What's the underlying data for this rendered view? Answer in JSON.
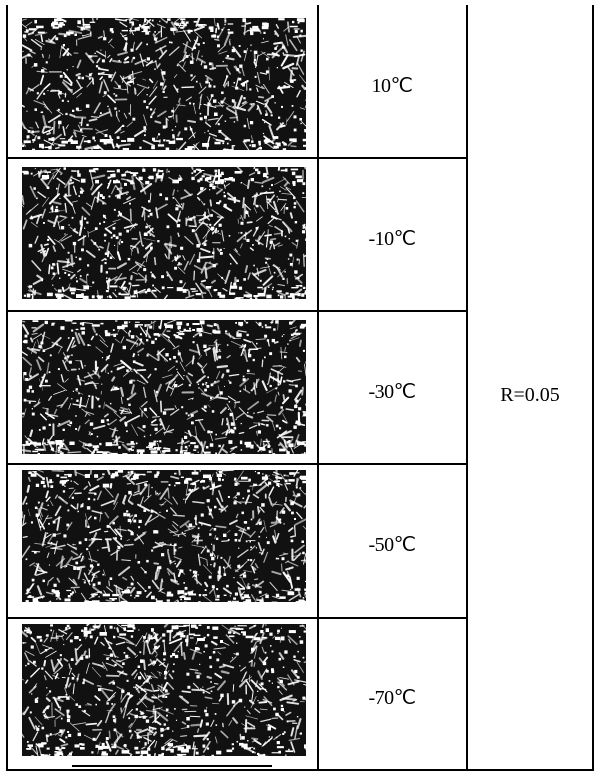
{
  "rows": [
    {
      "temperature": "10℃"
    },
    {
      "temperature": "-10℃"
    },
    {
      "temperature": "-30℃"
    },
    {
      "temperature": "-50℃"
    },
    {
      "temperature": "-70℃"
    }
  ],
  "ratio_label": "R=0.05",
  "colors": {
    "ink": "#000000",
    "paper": "#ffffff"
  }
}
